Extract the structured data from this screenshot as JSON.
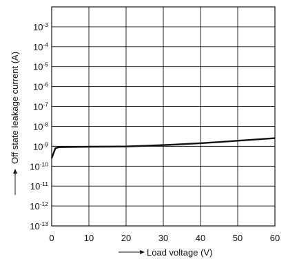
{
  "chart_data": {
    "type": "line",
    "xlabel": "Load voltage (V)",
    "ylabel": "Off state leakage current (A)",
    "xlim": [
      0,
      60
    ],
    "ylim_exponent": [
      -13,
      -2
    ],
    "y_scale": "log",
    "grid": true,
    "x_ticks": [
      "0",
      "10",
      "20",
      "30",
      "40",
      "50",
      "60"
    ],
    "y_ticks": [
      {
        "base": "10",
        "exp": "-3",
        "value": 0.001
      },
      {
        "base": "10",
        "exp": "-4",
        "value": 0.0001
      },
      {
        "base": "10",
        "exp": "-5",
        "value": 1e-05
      },
      {
        "base": "10",
        "exp": "-6",
        "value": 1e-06
      },
      {
        "base": "10",
        "exp": "-7",
        "value": 1e-07
      },
      {
        "base": "10",
        "exp": "-8",
        "value": 1e-08
      },
      {
        "base": "10",
        "exp": "-9",
        "value": 1e-09
      },
      {
        "base": "10",
        "exp": "-10",
        "value": 1e-10
      },
      {
        "base": "10",
        "exp": "-11",
        "value": 1e-11
      },
      {
        "base": "10",
        "exp": "-12",
        "value": 1e-12
      },
      {
        "base": "10",
        "exp": "-13",
        "value": 1e-13
      }
    ],
    "series": [
      {
        "color": "#111111",
        "points": [
          {
            "x": 0,
            "y": 2.5e-10
          },
          {
            "x": 0.4,
            "y": 4e-10
          },
          {
            "x": 1,
            "y": 8e-10
          },
          {
            "x": 2,
            "y": 9e-10
          },
          {
            "x": 5,
            "y": 9.2e-10
          },
          {
            "x": 10,
            "y": 9.5e-10
          },
          {
            "x": 15,
            "y": 9.6e-10
          },
          {
            "x": 20,
            "y": 9.8e-10
          },
          {
            "x": 25,
            "y": 1.05e-09
          },
          {
            "x": 30,
            "y": 1.15e-09
          },
          {
            "x": 35,
            "y": 1.27e-09
          },
          {
            "x": 40,
            "y": 1.42e-09
          },
          {
            "x": 45,
            "y": 1.63e-09
          },
          {
            "x": 50,
            "y": 1.9e-09
          },
          {
            "x": 55,
            "y": 2.2e-09
          },
          {
            "x": 60,
            "y": 2.55e-09
          }
        ]
      }
    ]
  }
}
